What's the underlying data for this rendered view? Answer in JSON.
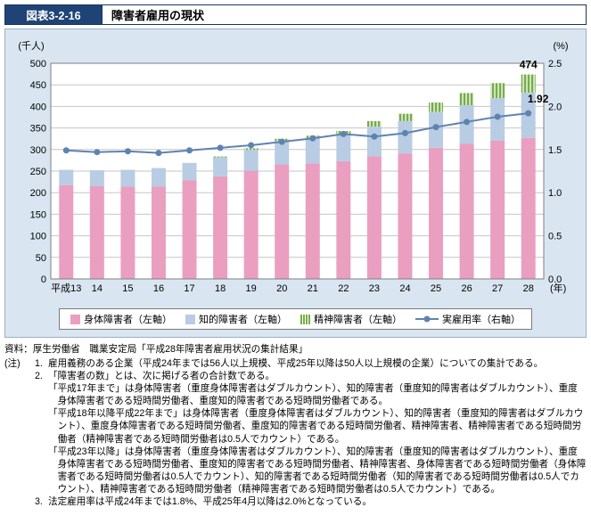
{
  "header": {
    "figure_label": "図表3-2-16",
    "title": "障害者雇用の現状"
  },
  "chart_data": {
    "type": "bar",
    "subtype": "stacked-bars-with-line",
    "title": "障害者雇用の現状",
    "categories": [
      "平成13",
      "14",
      "15",
      "16",
      "17",
      "18",
      "19",
      "20",
      "21",
      "22",
      "23",
      "24",
      "25",
      "26",
      "27",
      "28"
    ],
    "x_axis_suffix": "(年)",
    "left_axis": {
      "label": "(千人)",
      "min": 0,
      "max": 500,
      "step": 50
    },
    "right_axis": {
      "label": "(%)",
      "min": 0,
      "max": 2.5,
      "step": 0.5
    },
    "grid": true,
    "legend_position": "bottom",
    "series": [
      {
        "name": "身体障害者（左軸）",
        "kind": "bar",
        "stack": true,
        "color": "#ea9fc0",
        "values": [
          217,
          215,
          214,
          214,
          229,
          238,
          251,
          266,
          268,
          273,
          284,
          291,
          304,
          313,
          321,
          327
        ]
      },
      {
        "name": "知的障害者（左軸）",
        "kind": "bar",
        "stack": true,
        "color": "#b8cce4",
        "values": [
          36,
          37,
          39,
          43,
          40,
          44,
          48,
          54,
          57,
          61,
          69,
          75,
          83,
          90,
          98,
          105
        ]
      },
      {
        "name": "精神障害者（左軸）",
        "kind": "bar",
        "stack": true,
        "color": "#76ad48",
        "pattern": "white-vertical-stripes",
        "values": [
          0,
          0,
          0,
          0,
          0,
          2,
          4,
          5,
          7,
          9,
          13,
          17,
          22,
          28,
          35,
          42
        ]
      },
      {
        "name": "実雇用率（右軸）",
        "kind": "line",
        "axis": "right",
        "color": "#5f83b0",
        "values": [
          1.49,
          1.47,
          1.48,
          1.46,
          1.49,
          1.52,
          1.55,
          1.59,
          1.63,
          1.68,
          1.65,
          1.69,
          1.76,
          1.82,
          1.88,
          1.92
        ]
      }
    ],
    "annotations": [
      {
        "text": "474",
        "attach": "last_bar_total"
      },
      {
        "text": "1.92",
        "attach": "last_line_point"
      }
    ]
  },
  "source": "資料：厚生労働省　職業安定局「平成28年障害者雇用状況の集計結果」",
  "notes": {
    "label": "(注)",
    "items": [
      {
        "num": "1.",
        "text": "雇用義務のある企業（平成24年までは56人以上規模、平成25年以降は50人以上規模の企業）についての集計である。"
      },
      {
        "num": "2.",
        "text": "「障害者の数」とは、次に掲げる者の合計数である。",
        "paragraphs": [
          "「平成17年まで」は身体障害者（重度身体障害者はダブルカウント）、知的障害者（重度知的障害者はダブルカウント）、重度身体障害者である短時間労働者、重度知的障害者である短時間労働者である。",
          "「平成18年以降平成22年まで」は身体障害者（重度身体障害者はダブルカウント）、知的障害者（重度知的障害者はダブルカウント）、重度身体障害者である短時間労働者、重度知的障害者である短時間労働者、精神障害者、精神障害者である短時間労働者（精神障害者である短時間労働者は0.5人でカウント）である。",
          "「平成23年以降」は身体障害者（重度身体障害者はダブルカウント）、知的障害者（重度知的障害者はダブルカウント）、重度身体障害者である短時間労働者、重度知的障害者である短時間労働者、精神障害者、身体障害者である短時間労働者（身体障害者である短時間労働者は0.5人でカウント）、知的障害者である短時間労働者（知的障害者である短時間労働者は0.5人でカウント）、精神障害者である短時間労働者（精神障害者である短時間労働者は0.5人でカウント）である。"
        ]
      },
      {
        "num": "3.",
        "text": "法定雇用率は平成24年までは1.8%、平成25年4月以降は2.0%となっている。"
      }
    ]
  },
  "theme": {
    "panel_bg": "#d9e6f2",
    "header_bg": "#1f4377",
    "header_text": "#ffffff",
    "plot_bg": "#ffffff",
    "grid_color": "#c6c6c6",
    "plot_border": "#7f7f7f"
  }
}
